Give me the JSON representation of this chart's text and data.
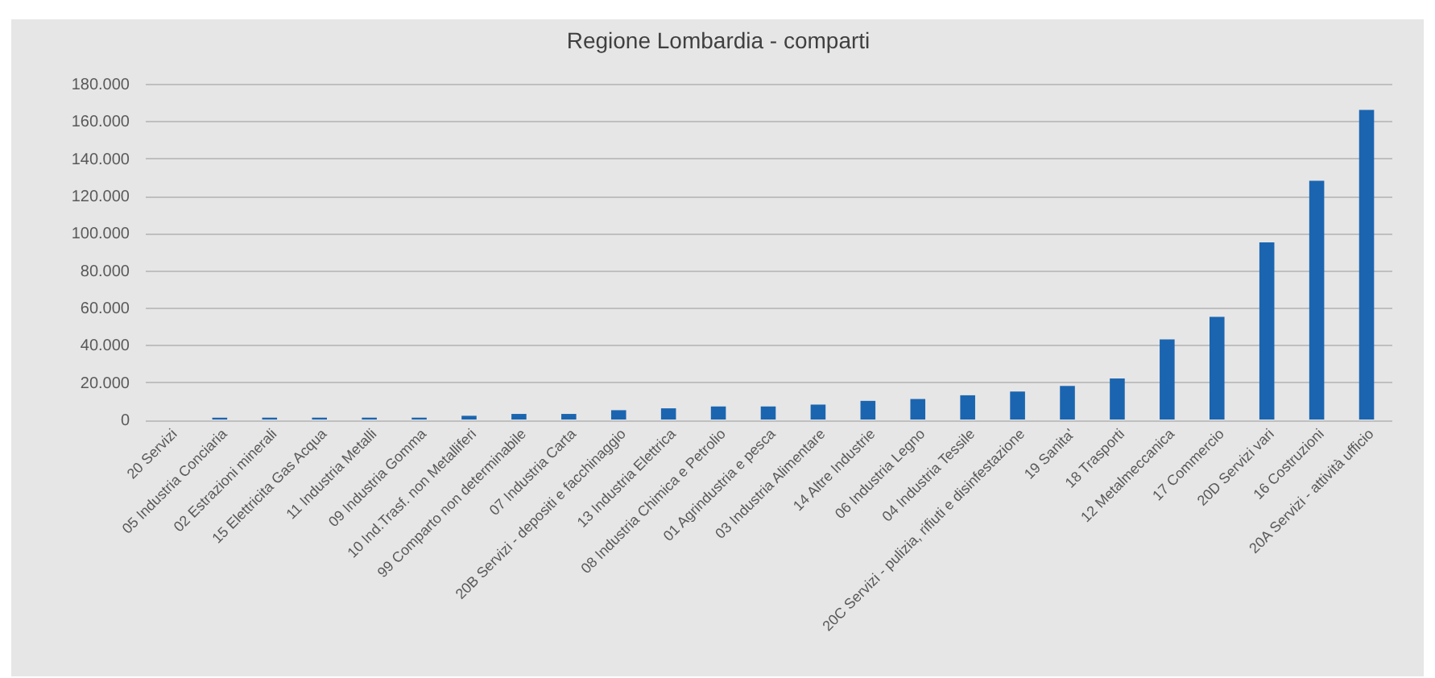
{
  "chart_data": {
    "type": "bar",
    "title": "Regione Lombardia - comparti",
    "categories": [
      "20 Servizi",
      "05 Industria Conciaria",
      "02 Estrazioni minerali",
      "15 Elettricita Gas Acqua",
      "11 Industria Metalli",
      "09 Industria Gomma",
      "10 Ind.Trasf. non Metalliferi",
      "99 Comparto non determinabile",
      "07 Industria Carta",
      "20B Servizi - depositi e facchinaggio",
      "13 Industria Elettrica",
      "08 Industria Chimica e Petrolio",
      "01 Agrindustria e pesca",
      "03 Industria Alimentare",
      "14 Altre Industrie",
      "06 Industria Legno",
      "04 Industria Tessile",
      "20C Servizi - pulizia, rifiuti e disinfestazione",
      "19 Sanita'",
      "18 Trasporti",
      "12 Metalmeccanica",
      "17 Commercio",
      "20D Servizi vari",
      "16 Costruzioni",
      "20A Servizi - attività ufficio"
    ],
    "values": [
      0,
      1000,
      1000,
      1000,
      1000,
      1000,
      2000,
      3000,
      3000,
      5000,
      6000,
      7000,
      7000,
      8000,
      10000,
      11000,
      13000,
      15000,
      18000,
      22000,
      43000,
      55000,
      95000,
      128000,
      166000
    ],
    "color": "#1b65b0",
    "ylim": [
      0,
      180000
    ],
    "yticks": [
      0,
      {
        "value": 20000,
        "label": "20.000"
      },
      {
        "value": 40000,
        "label": "40.000"
      },
      {
        "value": 60000,
        "label": "60.000"
      },
      {
        "value": 80000,
        "label": "80.000"
      },
      {
        "value": 100000,
        "label": "100.000"
      },
      {
        "value": 120000,
        "label": "120.000"
      },
      {
        "value": 140000,
        "label": "140.000"
      },
      {
        "value": 160000,
        "label": "160.000"
      },
      {
        "value": 180000,
        "label": "180.000"
      }
    ],
    "grid": "y"
  }
}
